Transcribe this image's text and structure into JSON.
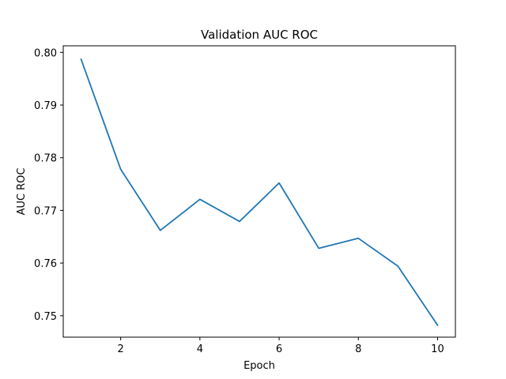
{
  "chart_data": {
    "type": "line",
    "title": "Validation AUC ROC",
    "xlabel": "Epoch",
    "ylabel": "AUC ROC",
    "x": [
      1,
      2,
      3,
      4,
      5,
      6,
      7,
      8,
      9,
      10
    ],
    "series": [
      {
        "values": [
          0.7987,
          0.7778,
          0.7662,
          0.7721,
          0.7679,
          0.7752,
          0.7628,
          0.7647,
          0.7594,
          0.7482
        ],
        "color": "#1f77b4"
      }
    ],
    "xticks": [
      2,
      4,
      6,
      8,
      10
    ],
    "yticks": [
      0.75,
      0.76,
      0.77,
      0.78,
      0.79,
      0.8
    ],
    "ytick_labels": [
      "0.75",
      "0.76",
      "0.77",
      "0.78",
      "0.79",
      "0.80"
    ],
    "xlim": [
      0.55,
      10.45
    ],
    "ylim": [
      0.74593,
      0.80125
    ],
    "grid": false
  }
}
